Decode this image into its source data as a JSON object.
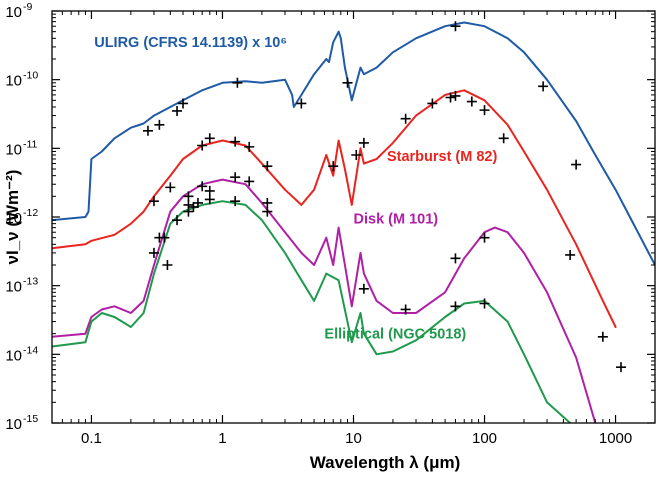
{
  "chart_data": {
    "type": "line",
    "xlabel": "Wavelength λ (μm)",
    "ylabel": "νI_ν (Wm⁻²)",
    "xscale": "log",
    "yscale": "log",
    "xlim": [
      0.05,
      2000
    ],
    "ylim": [
      1e-15,
      1e-09
    ],
    "x_ticks": [
      {
        "value": 0.1,
        "label": "0.1"
      },
      {
        "value": 1,
        "label": "1"
      },
      {
        "value": 10,
        "label": "10"
      },
      {
        "value": 100,
        "label": "100"
      },
      {
        "value": 1000,
        "label": "1000"
      }
    ],
    "y_ticks": [
      {
        "value": 1e-15,
        "mant": "10",
        "exp": "-15"
      },
      {
        "value": 1e-14,
        "mant": "10",
        "exp": "-14"
      },
      {
        "value": 1e-13,
        "mant": "10",
        "exp": "-13"
      },
      {
        "value": 1e-12,
        "mant": "10",
        "exp": "-12"
      },
      {
        "value": 1e-11,
        "mant": "10",
        "exp": "-11"
      },
      {
        "value": 1e-10,
        "mant": "10",
        "exp": "-10"
      },
      {
        "value": 1e-09,
        "mant": "10",
        "exp": "-9"
      }
    ],
    "grid": false,
    "legend": "none (inline labels)",
    "series": [
      {
        "name": "ULIRG (CFRS 14.1139) x 10⁶",
        "color": "#1f5aa6",
        "label_x": 0.105,
        "label_y": 3e-10,
        "x": [
          0.05,
          0.09,
          0.095,
          0.1,
          0.12,
          0.15,
          0.2,
          0.25,
          0.3,
          0.4,
          0.5,
          0.7,
          1.0,
          1.5,
          2.0,
          3.0,
          3.4,
          3.5,
          4.0,
          5.0,
          6.2,
          6.5,
          7.0,
          7.7,
          8.0,
          8.6,
          9.7,
          11.3,
          12.0,
          15,
          20,
          30,
          50,
          70,
          100,
          150,
          200,
          300,
          500,
          700,
          1000,
          2000
        ],
        "y": [
          9e-13,
          1e-12,
          1.2e-12,
          7e-12,
          9e-12,
          1.4e-11,
          2e-11,
          2.3e-11,
          3e-11,
          4e-11,
          5e-11,
          7e-11,
          9e-11,
          9.5e-11,
          9e-11,
          1e-10,
          6e-11,
          4e-11,
          6e-11,
          1.2e-10,
          2e-10,
          1.8e-10,
          3.5e-10,
          5e-10,
          4e-10,
          1.5e-10,
          5e-11,
          1.5e-10,
          1.2e-10,
          1.5e-10,
          2.5e-10,
          4e-10,
          6e-10,
          6.8e-10,
          6e-10,
          4e-10,
          2.5e-10,
          1e-10,
          2.5e-11,
          8e-12,
          2.5e-12,
          2e-13
        ]
      },
      {
        "name": "Starburst (M 82)",
        "color": "#e8251f",
        "label_x": 18,
        "label_y": 6.5e-12,
        "x": [
          0.05,
          0.09,
          0.1,
          0.15,
          0.2,
          0.25,
          0.3,
          0.4,
          0.5,
          0.7,
          1.0,
          1.5,
          2.0,
          3.0,
          4.0,
          5.0,
          6.2,
          7.0,
          7.7,
          8.6,
          9.7,
          11.3,
          12,
          15,
          20,
          30,
          50,
          70,
          100,
          150,
          200,
          300,
          500,
          800,
          1000
        ],
        "y": [
          3.5e-13,
          4e-13,
          4.5e-13,
          5.5e-13,
          8e-13,
          1.2e-12,
          2e-12,
          4e-12,
          7e-12,
          1.1e-11,
          1.3e-11,
          1.1e-11,
          6e-12,
          2.5e-12,
          1.5e-12,
          2.5e-12,
          8e-12,
          4e-12,
          1.3e-11,
          5e-12,
          1.5e-12,
          1e-11,
          6e-12,
          7e-12,
          1.2e-11,
          3e-11,
          6e-11,
          7e-11,
          5e-11,
          2.2e-11,
          9e-12,
          2.5e-12,
          4e-13,
          6e-14,
          2.5e-14
        ]
      },
      {
        "name": "Disk (M 101)",
        "color": "#b01fa6",
        "label_x": 10,
        "label_y": 8e-13,
        "x": [
          0.05,
          0.09,
          0.1,
          0.12,
          0.15,
          0.2,
          0.25,
          0.3,
          0.4,
          0.5,
          0.7,
          1.0,
          1.5,
          2.0,
          3.0,
          4.0,
          5.0,
          6.2,
          7.0,
          7.7,
          8.6,
          9.7,
          11.3,
          12,
          15,
          20,
          30,
          50,
          70,
          100,
          120,
          150,
          200,
          300,
          500,
          700
        ],
        "y": [
          1.8e-14,
          2e-14,
          3.5e-14,
          4.5e-14,
          5e-14,
          4e-14,
          6e-14,
          2e-13,
          1.2e-12,
          2e-12,
          3e-12,
          3.5e-12,
          3e-12,
          1.6e-12,
          6e-13,
          3e-13,
          2e-13,
          5e-13,
          2e-13,
          7e-13,
          2e-13,
          5e-14,
          3e-13,
          1.5e-13,
          6e-14,
          4e-14,
          4e-14,
          8e-14,
          2.5e-13,
          6e-13,
          7e-13,
          6e-13,
          3e-13,
          8e-14,
          9e-15,
          1e-15
        ]
      },
      {
        "name": "Elliptical (NGC 5018)",
        "color": "#1f9a4c",
        "label_x": 6,
        "label_y": 1.7e-14,
        "x": [
          0.05,
          0.09,
          0.1,
          0.12,
          0.15,
          0.2,
          0.25,
          0.3,
          0.4,
          0.5,
          0.7,
          1.0,
          1.5,
          2.0,
          3.0,
          4.0,
          5.0,
          6.2,
          7.7,
          9.7,
          11.3,
          12,
          15,
          20,
          30,
          50,
          70,
          100,
          150,
          200,
          300,
          450
        ],
        "y": [
          1.3e-14,
          1.5e-14,
          3e-14,
          4e-14,
          3.5e-14,
          2.5e-14,
          4e-14,
          1.5e-13,
          8e-13,
          1.2e-12,
          1.5e-12,
          1.7e-12,
          1.5e-12,
          9e-13,
          3e-13,
          1.2e-13,
          6e-14,
          1.5e-13,
          1.2e-13,
          1.5e-14,
          4e-14,
          2e-14,
          1e-14,
          1.1e-14,
          1.6e-14,
          3.5e-14,
          5.5e-14,
          6e-14,
          3e-14,
          1e-14,
          2e-15,
          1e-15
        ]
      }
    ],
    "markers": {
      "style": "+",
      "color": "#000000",
      "points": [
        [
          1.3,
          9e-11
        ],
        [
          4,
          4.5e-11
        ],
        [
          9,
          9e-11
        ],
        [
          60,
          6e-10
        ],
        [
          280,
          8e-11
        ],
        [
          0.27,
          1.8e-11
        ],
        [
          0.33,
          2.2e-11
        ],
        [
          0.45,
          3.5e-11
        ],
        [
          0.5,
          4.5e-11
        ],
        [
          0.7,
          1.1e-11
        ],
        [
          0.8,
          1.4e-11
        ],
        [
          1.25,
          1.25e-11
        ],
        [
          1.6,
          1.05e-11
        ],
        [
          2.2,
          5.5e-12
        ],
        [
          7,
          5.5e-12
        ],
        [
          10.5,
          8e-12
        ],
        [
          12,
          1.2e-11
        ],
        [
          25,
          2.7e-11
        ],
        [
          40,
          4.5e-11
        ],
        [
          55,
          5.5e-11
        ],
        [
          60,
          5.8e-11
        ],
        [
          80,
          4.8e-11
        ],
        [
          100,
          3.6e-11
        ],
        [
          140,
          1.4e-11
        ],
        [
          500,
          5.8e-12
        ],
        [
          0.3,
          1.7e-12
        ],
        [
          0.4,
          2.7e-12
        ],
        [
          0.55,
          1.2e-12
        ],
        [
          0.6,
          1.4e-12
        ],
        [
          0.7,
          2.8e-12
        ],
        [
          0.8,
          2.4e-12
        ],
        [
          1.25,
          3.8e-12
        ],
        [
          1.6,
          3.3e-12
        ],
        [
          2.2,
          1.6e-12
        ],
        [
          60,
          2.5e-13
        ],
        [
          100,
          5e-13
        ],
        [
          450,
          2.8e-13
        ],
        [
          800,
          1.8e-14
        ],
        [
          1100,
          6.5e-15
        ],
        [
          0.33,
          5e-13
        ],
        [
          0.38,
          2e-13
        ],
        [
          0.45,
          9e-13
        ],
        [
          0.55,
          2e-12
        ],
        [
          0.65,
          1.6e-12
        ],
        [
          1.25,
          1.7e-12
        ],
        [
          2.2,
          1.2e-12
        ],
        [
          12,
          9e-14
        ],
        [
          25,
          4.5e-14
        ],
        [
          60,
          5e-14
        ],
        [
          100,
          5.5e-14
        ],
        [
          0.3,
          3e-13
        ],
        [
          0.36,
          5e-13
        ],
        [
          0.55,
          1.5e-12
        ],
        [
          0.8,
          1.8e-12
        ]
      ]
    }
  }
}
